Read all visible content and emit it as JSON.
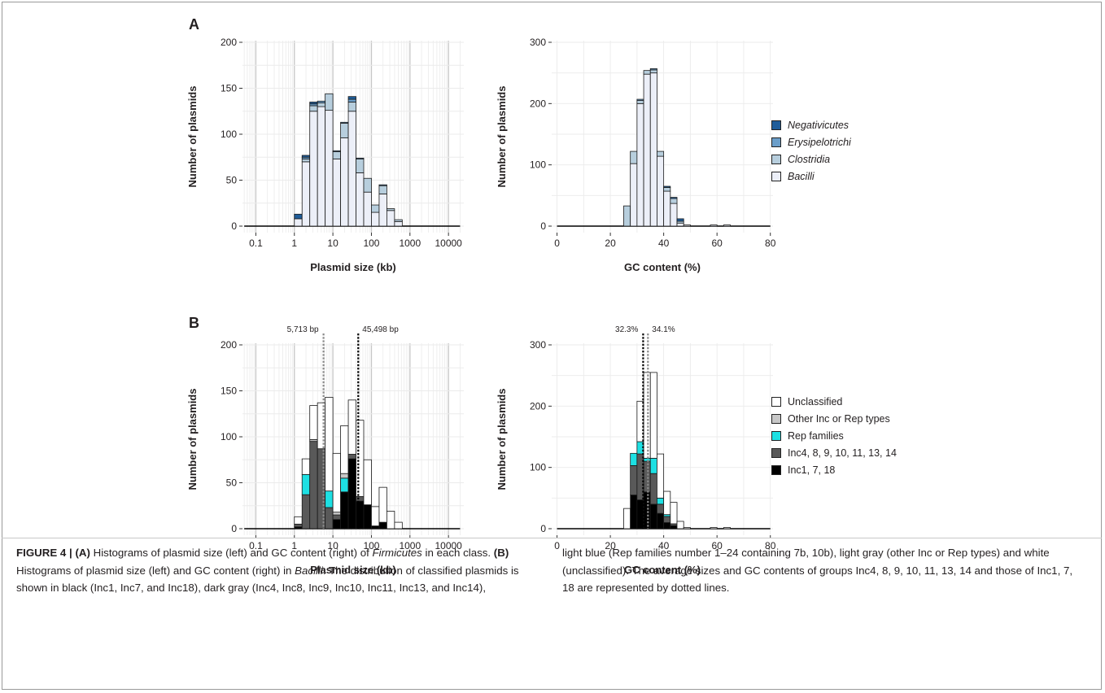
{
  "colors": {
    "negativicutes": "#1f5d9a",
    "erysipelotrichi": "#6b9ec9",
    "clostridia": "#b7cedd",
    "bacilli": "#eceff8",
    "unclassified": "#ffffff",
    "other_inc_rep": "#c7c7c7",
    "rep_families": "#1de0e3",
    "inc4_group": "#595959",
    "inc1_group": "#000000",
    "grid": "#ebebeb",
    "grid_major": "#c6c6c6"
  },
  "panels": {
    "a_label": "A",
    "b_label": "B"
  },
  "legend_a": [
    {
      "label": "Negativicutes",
      "color_key": "negativicutes"
    },
    {
      "label": "Erysipelotrichi",
      "color_key": "erysipelotrichi"
    },
    {
      "label": "Clostridia",
      "color_key": "clostridia"
    },
    {
      "label": "Bacilli",
      "color_key": "bacilli"
    }
  ],
  "legend_b": [
    {
      "label": "Unclassified",
      "color_key": "unclassified"
    },
    {
      "label": "Other Inc or Rep types",
      "color_key": "other_inc_rep"
    },
    {
      "label": "Rep families",
      "color_key": "rep_families"
    },
    {
      "label": "Inc4, 8, 9, 10, 11, 13, 14",
      "color_key": "inc4_group"
    },
    {
      "label": "Inc1, 7, 18",
      "color_key": "inc1_group"
    }
  ],
  "chart_data": [
    {
      "id": "A-size",
      "type": "bar",
      "scale": "log",
      "xlabel": "Plasmid size (kb)",
      "ylabel": "Number of plasmids",
      "xlim": [
        0.045,
        25000
      ],
      "ylim": [
        0,
        200
      ],
      "xticks": [
        "0.1",
        "1",
        "10",
        "100",
        "1000",
        "10000"
      ],
      "yticks": [
        0,
        50,
        100,
        150,
        200
      ],
      "series_order": [
        "bacilli",
        "clostridia",
        "erysipelotrichi",
        "negativicutes"
      ],
      "series_names": [
        "Bacilli",
        "Clostridia",
        "Erysipelotrichi",
        "Negativicutes"
      ],
      "bins_log10": [
        [
          0,
          0.2
        ],
        [
          0.2,
          0.4
        ],
        [
          0.4,
          0.6
        ],
        [
          0.6,
          0.8
        ],
        [
          0.8,
          1.0
        ],
        [
          1.0,
          1.2
        ],
        [
          1.2,
          1.4
        ],
        [
          1.4,
          1.6
        ],
        [
          1.6,
          1.8
        ],
        [
          1.8,
          2.0
        ],
        [
          2.0,
          2.2
        ],
        [
          2.2,
          2.4
        ],
        [
          2.4,
          2.6
        ],
        [
          2.6,
          2.8
        ]
      ],
      "stacks": [
        [
          8,
          0,
          0,
          5
        ],
        [
          70,
          3,
          2,
          2
        ],
        [
          125,
          6,
          2,
          2
        ],
        [
          130,
          4,
          2,
          0
        ],
        [
          126,
          18,
          0,
          0
        ],
        [
          73,
          8,
          1,
          0
        ],
        [
          96,
          16,
          1,
          0
        ],
        [
          125,
          10,
          3,
          3
        ],
        [
          58,
          15,
          1,
          0
        ],
        [
          37,
          15,
          0,
          0
        ],
        [
          15,
          8,
          0,
          0
        ],
        [
          35,
          9,
          1,
          0
        ],
        [
          17,
          2,
          0,
          0
        ],
        [
          5,
          2,
          0,
          0
        ]
      ]
    },
    {
      "id": "A-gc",
      "type": "bar",
      "scale": "linear",
      "xlabel": "GC content (%)",
      "ylabel": "Number of plasmids",
      "xlim": [
        -2,
        81
      ],
      "ylim": [
        0,
        300
      ],
      "xticks": [
        "0",
        "20",
        "40",
        "60",
        "80"
      ],
      "yticks": [
        0,
        100,
        200,
        300
      ],
      "series_order": [
        "bacilli",
        "clostridia",
        "erysipelotrichi",
        "negativicutes"
      ],
      "series_names": [
        "Bacilli",
        "Clostridia",
        "Erysipelotrichi",
        "Negativicutes"
      ],
      "bin_width": 2.5,
      "bin_starts": [
        25,
        27.5,
        30,
        32.5,
        35,
        37.5,
        40,
        42.5,
        45,
        47.5,
        57.5,
        62.5
      ],
      "stacks": [
        [
          0,
          33,
          0,
          0
        ],
        [
          102,
          20,
          0,
          0
        ],
        [
          200,
          5,
          2,
          0
        ],
        [
          248,
          6,
          0,
          0
        ],
        [
          250,
          5,
          2,
          0
        ],
        [
          114,
          8,
          0,
          0
        ],
        [
          57,
          6,
          0,
          2
        ],
        [
          37,
          8,
          0,
          2
        ],
        [
          5,
          3,
          0,
          4
        ],
        [
          2,
          0,
          0,
          0
        ],
        [
          2,
          0,
          0,
          0
        ],
        [
          2,
          0,
          0,
          0
        ]
      ]
    },
    {
      "id": "B-size",
      "type": "bar",
      "scale": "log",
      "xlabel": "Plasmid size (kb)",
      "ylabel": "Number of plasmids",
      "xlim": [
        0.045,
        25000
      ],
      "ylim": [
        0,
        200
      ],
      "xticks": [
        "0.1",
        "1",
        "10",
        "100",
        "1000",
        "10000"
      ],
      "yticks": [
        0,
        50,
        100,
        150,
        200
      ],
      "series_order": [
        "inc1_group",
        "inc4_group",
        "rep_families",
        "other_inc_rep",
        "unclassified"
      ],
      "series_names": [
        "Inc1, 7, 18",
        "Inc4, 8, 9, 10, 11, 13, 14",
        "Rep families",
        "Other Inc or Rep types",
        "Unclassified"
      ],
      "bins_log10": [
        [
          0,
          0.2
        ],
        [
          0.2,
          0.4
        ],
        [
          0.4,
          0.6
        ],
        [
          0.6,
          0.8
        ],
        [
          0.8,
          1.0
        ],
        [
          1.0,
          1.2
        ],
        [
          1.2,
          1.4
        ],
        [
          1.4,
          1.6
        ],
        [
          1.6,
          1.8
        ],
        [
          1.8,
          2.0
        ],
        [
          2.0,
          2.2
        ],
        [
          2.2,
          2.4
        ],
        [
          2.4,
          2.6
        ],
        [
          2.6,
          2.8
        ]
      ],
      "stacks": [
        [
          2,
          3,
          0,
          0,
          8
        ],
        [
          0,
          37,
          22,
          0,
          17
        ],
        [
          0,
          95,
          0,
          2,
          37
        ],
        [
          0,
          87,
          0,
          0,
          50
        ],
        [
          0,
          23,
          18,
          0,
          102
        ],
        [
          10,
          5,
          0,
          3,
          64
        ],
        [
          40,
          0,
          15,
          5,
          52
        ],
        [
          76,
          5,
          0,
          0,
          59
        ],
        [
          30,
          5,
          0,
          0,
          83
        ],
        [
          26,
          0,
          0,
          0,
          49
        ],
        [
          3,
          0,
          0,
          0,
          21
        ],
        [
          7,
          0,
          0,
          0,
          38
        ],
        [
          0,
          0,
          0,
          0,
          19
        ],
        [
          0,
          0,
          0,
          0,
          7
        ]
      ],
      "mean_lines": [
        {
          "label": "5,713 bp",
          "value_kb": 5.713,
          "style": "gray"
        },
        {
          "label": "45,498 bp",
          "value_kb": 45.498,
          "style": "black"
        }
      ]
    },
    {
      "id": "B-gc",
      "type": "bar",
      "scale": "linear",
      "xlabel": "GC content (%)",
      "ylabel": "Number of plasmids",
      "xlim": [
        -2,
        81
      ],
      "ylim": [
        0,
        300
      ],
      "xticks": [
        "0",
        "20",
        "40",
        "60",
        "80"
      ],
      "yticks": [
        0,
        100,
        200,
        300
      ],
      "series_order": [
        "inc1_group",
        "inc4_group",
        "rep_families",
        "other_inc_rep",
        "unclassified"
      ],
      "series_names": [
        "Inc1, 7, 18",
        "Inc4, 8, 9, 10, 11, 13, 14",
        "Rep families",
        "Other Inc or Rep types",
        "Unclassified"
      ],
      "bin_width": 2.5,
      "bin_starts": [
        25,
        27.5,
        30,
        32.5,
        35,
        37.5,
        40,
        42.5,
        45,
        47.5,
        57.5,
        62.5
      ],
      "stacks": [
        [
          0,
          0,
          0,
          0,
          33
        ],
        [
          55,
          48,
          20,
          0,
          0
        ],
        [
          47,
          75,
          20,
          0,
          66
        ],
        [
          60,
          50,
          5,
          0,
          140
        ],
        [
          40,
          50,
          25,
          0,
          140
        ],
        [
          25,
          15,
          10,
          0,
          72
        ],
        [
          10,
          10,
          3,
          0,
          38
        ],
        [
          5,
          3,
          0,
          0,
          35
        ],
        [
          0,
          0,
          0,
          0,
          12
        ],
        [
          0,
          0,
          0,
          0,
          2
        ],
        [
          0,
          0,
          0,
          0,
          2
        ],
        [
          0,
          0,
          0,
          0,
          2
        ]
      ],
      "mean_lines": [
        {
          "label": "32.3%",
          "value": 32.3,
          "style": "black"
        },
        {
          "label": "34.1%",
          "value": 34.1,
          "style": "gray"
        }
      ]
    }
  ],
  "caption": {
    "figure_label": "FIGURE 4 |",
    "a_marker": "(A)",
    "a_text": " Histograms of plasmid size (left) and GC content (right) of ",
    "firmicutes": "Firmicutes",
    "a_text2": " in each class. ",
    "b_marker": "(B)",
    "b_text": " Histograms of plasmid size (left) and GC content (right) in ",
    "bacilli": "Bacilli",
    "b_text2": ". The distribution of classified plasmids is shown in black (Inc1, Inc7, and Inc18), dark gray (Inc4, Inc8, Inc9, Inc10, Inc11, Inc13, and Inc14),",
    "right_text": "light blue (Rep families number 1–24 containing 7b, 10b), light gray (other Inc or Rep types) and white (unclassified). The average sizes and GC contents of groups Inc4, 8, 9, 10, 11, 13, 14 and those of Inc1, 7, 18 are represented by dotted lines."
  }
}
